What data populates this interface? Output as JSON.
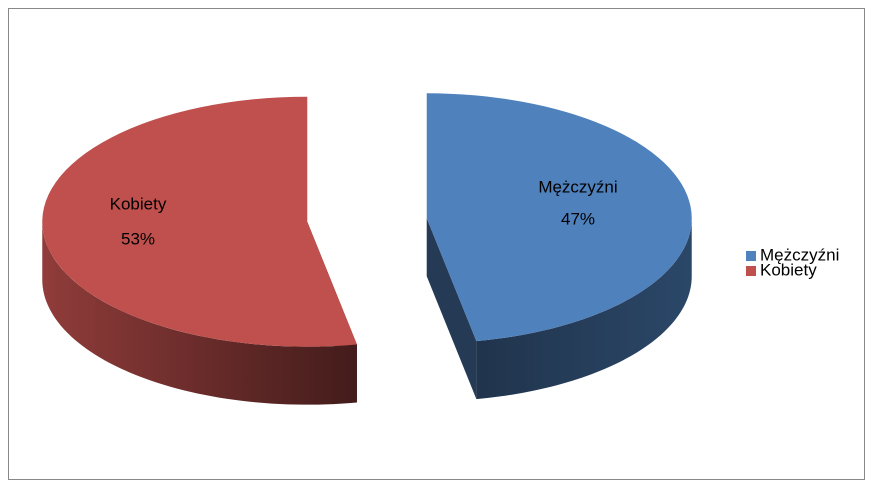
{
  "chart_data": {
    "type": "pie",
    "categories": [
      "Mężczyźni",
      "Kobiety"
    ],
    "values": [
      47,
      53
    ],
    "value_labels": [
      "47%",
      "53%"
    ],
    "colors": [
      "#4f81bd",
      "#c0504d"
    ],
    "legend": "right",
    "view": "3d",
    "exploded": true
  }
}
